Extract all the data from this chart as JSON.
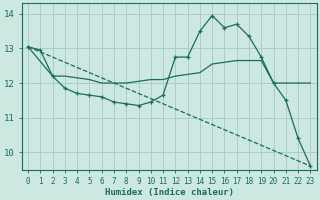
{
  "xlabel": "Humidex (Indice chaleur)",
  "bg_color": "#cce8e0",
  "grid_color": "#aacccc",
  "line_color": "#1a6b60",
  "xlim": [
    -0.5,
    23.5
  ],
  "ylim": [
    9.5,
    14.3
  ],
  "yticks": [
    10,
    11,
    12,
    13,
    14
  ],
  "xticks": [
    0,
    1,
    2,
    3,
    4,
    5,
    6,
    7,
    8,
    9,
    10,
    11,
    12,
    13,
    14,
    15,
    16,
    17,
    18,
    19,
    20,
    21,
    22,
    23
  ],
  "series1_x": [
    0,
    1,
    2,
    3,
    4,
    5,
    6,
    7,
    8,
    9,
    10,
    11,
    12,
    13,
    14,
    15,
    16,
    17,
    18,
    19,
    20,
    21,
    22,
    23
  ],
  "series1_y": [
    13.05,
    12.95,
    12.2,
    11.85,
    11.7,
    11.65,
    11.6,
    11.45,
    11.4,
    11.35,
    11.45,
    11.65,
    12.75,
    12.75,
    13.5,
    13.95,
    13.6,
    13.7,
    13.35,
    12.75,
    12.0,
    11.5,
    10.4,
    9.6
  ],
  "series2_x": [
    0,
    2,
    3,
    4,
    5,
    6,
    7,
    8,
    9,
    10,
    11,
    12,
    13,
    14,
    15,
    16,
    17,
    18,
    19,
    20,
    21,
    22,
    23
  ],
  "series2_y": [
    13.05,
    12.2,
    12.2,
    12.15,
    12.1,
    12.0,
    12.0,
    12.0,
    12.05,
    12.1,
    12.1,
    12.2,
    12.25,
    12.3,
    12.55,
    12.6,
    12.65,
    12.65,
    12.65,
    12.0,
    12.0,
    12.0,
    12.0
  ],
  "series3_x": [
    0,
    23
  ],
  "series3_y": [
    13.05,
    9.6
  ]
}
